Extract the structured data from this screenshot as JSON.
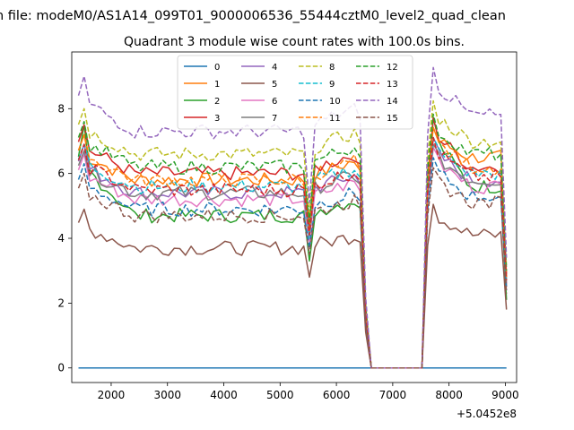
{
  "chart_data": {
    "type": "line",
    "suptitle": "h file: modeM0/AS1A14_099T01_9000006536_55444cztM0_level2_quad_clean",
    "title": "Quadrant 3 module wise count rates with 100.0s bins.",
    "xlabel": "",
    "ylabel": "",
    "x_offset_label": "+5.0452e8",
    "xlim": [
      1300,
      9200
    ],
    "ylim": [
      -0.45,
      9.75
    ],
    "xticks": [
      2000,
      3000,
      4000,
      5000,
      6000,
      7000,
      8000,
      9000
    ],
    "xtick_labels": [
      "2000",
      "3000",
      "4000",
      "5000",
      "6000",
      "7000",
      "8000",
      "9000"
    ],
    "yticks": [
      0,
      2,
      4,
      6,
      8
    ],
    "ytick_labels": [
      "0",
      "2",
      "4",
      "6",
      "8"
    ],
    "legend_position": "top-center",
    "x": {
      "start": 1420,
      "step": 100,
      "count": 77
    },
    "gap": {
      "start_index": 52,
      "end_index": 61
    },
    "series": [
      {
        "name": "0",
        "color": "#1f77b4",
        "dash": "solid",
        "before": 0,
        "peak": 0,
        "after": 0,
        "dip": 0,
        "end": 0
      },
      {
        "name": "1",
        "color": "#ff7f0e",
        "dash": "solid",
        "before": 5.8,
        "peak": 7.2,
        "after": 6.5,
        "dip": 4.4,
        "end": 2.8
      },
      {
        "name": "2",
        "color": "#2ca02c",
        "dash": "solid",
        "before": 4.7,
        "peak": 7.5,
        "after": 5.6,
        "dip": 3.3,
        "end": 2.1
      },
      {
        "name": "3",
        "color": "#d62728",
        "dash": "solid",
        "before": 6.0,
        "peak": 7.5,
        "after": 6.2,
        "dip": 4.3,
        "end": 2.9
      },
      {
        "name": "4",
        "color": "#9467bd",
        "dash": "solid",
        "before": 5.4,
        "peak": 6.9,
        "after": 5.8,
        "dip": 3.9,
        "end": 2.6
      },
      {
        "name": "5",
        "color": "#8c564b",
        "dash": "solid",
        "before": 3.7,
        "peak": 4.9,
        "after": 4.1,
        "dip": 2.8,
        "end": 1.8
      },
      {
        "name": "6",
        "color": "#e377c2",
        "dash": "solid",
        "before": 5.2,
        "peak": 6.6,
        "after": 5.6,
        "dip": 3.9,
        "end": 2.5
      },
      {
        "name": "7",
        "color": "#7f7f7f",
        "dash": "solid",
        "before": 5.4,
        "peak": 6.7,
        "after": 5.8,
        "dip": 4.1,
        "end": 2.5
      },
      {
        "name": "8",
        "color": "#bcbd22",
        "dash": "dashed",
        "before": 6.6,
        "peak": 8.0,
        "after": 7.0,
        "dip": 4.7,
        "end": 3.1
      },
      {
        "name": "9",
        "color": "#17becf",
        "dash": "dashed",
        "before": 5.6,
        "peak": 6.9,
        "after": 6.0,
        "dip": 4.0,
        "end": 2.7
      },
      {
        "name": "10",
        "color": "#1f77b4",
        "dash": "dashed",
        "before": 4.9,
        "peak": 6.3,
        "after": 5.3,
        "dip": 3.7,
        "end": 2.4
      },
      {
        "name": "11",
        "color": "#ff7f0e",
        "dash": "dashed",
        "before": 5.8,
        "peak": 7.2,
        "after": 6.2,
        "dip": 4.2,
        "end": 2.8
      },
      {
        "name": "12",
        "color": "#2ca02c",
        "dash": "dashed",
        "before": 6.2,
        "peak": 7.6,
        "after": 6.6,
        "dip": 4.5,
        "end": 3.0
      },
      {
        "name": "13",
        "color": "#d62728",
        "dash": "dashed",
        "before": 5.5,
        "peak": 6.9,
        "after": 5.9,
        "dip": 4.1,
        "end": 2.7
      },
      {
        "name": "14",
        "color": "#9467bd",
        "dash": "dashed",
        "before": 7.3,
        "peak": 9.0,
        "after": 7.8,
        "dip": 5.1,
        "end": 3.4
      },
      {
        "name": "15",
        "color": "#8c564b",
        "dash": "dashed",
        "before": 4.7,
        "peak": 6.0,
        "after": 5.1,
        "dip": 3.5,
        "end": 2.3
      }
    ]
  }
}
